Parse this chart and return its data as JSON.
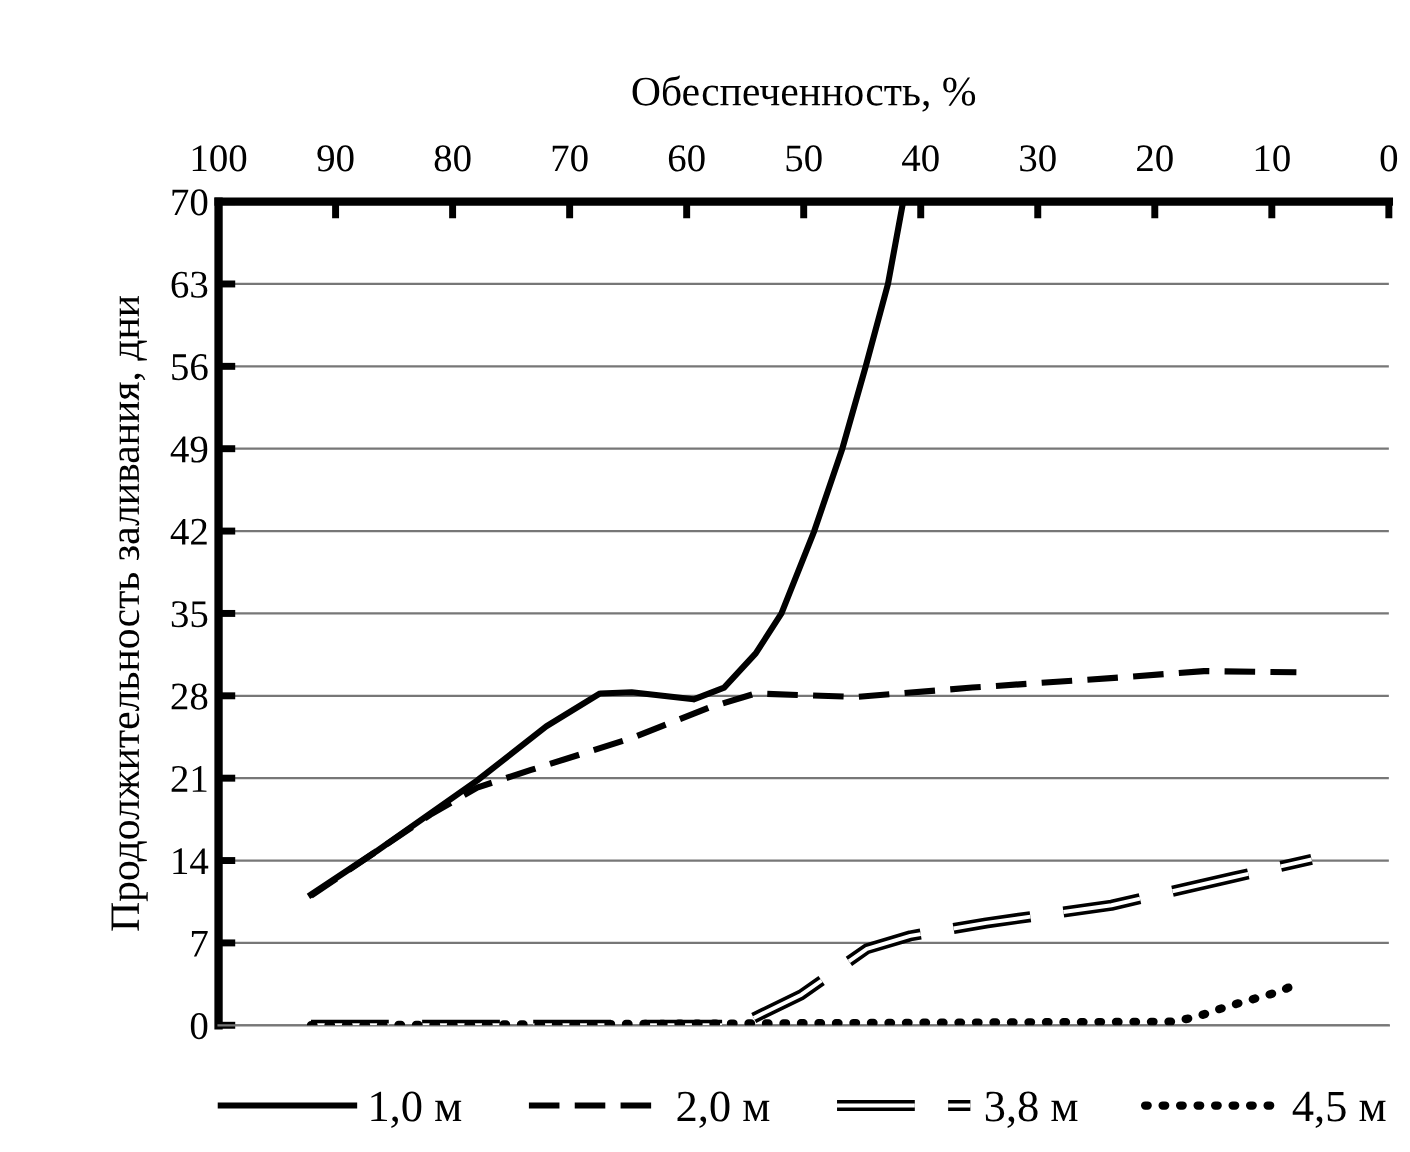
{
  "chart_data": {
    "type": "line",
    "xlabel": "Обеспеченность, %",
    "ylabel": "Продолжительность заливания, дни",
    "xlim": [
      100,
      0
    ],
    "xticks": [
      100,
      90,
      80,
      70,
      60,
      50,
      40,
      30,
      20,
      10,
      0
    ],
    "ylim": [
      0,
      70
    ],
    "yticks": [
      0,
      7,
      14,
      21,
      28,
      35,
      42,
      49,
      56,
      63,
      70
    ],
    "grid": "y",
    "legend": "bottom",
    "marker": "none",
    "series": [
      {
        "name": "1,0 м",
        "color": "#000000",
        "line_style": "solid",
        "x": [
          92.1,
          86.5,
          77.9,
          72,
          67.4,
          64.7,
          59.4,
          56.8,
          54.1,
          51.9,
          49.1,
          46.7,
          44.7,
          42.8,
          41.5
        ],
        "values": [
          11.1,
          14.8,
          20.8,
          25.4,
          28.2,
          28.3,
          27.7,
          28.7,
          31.6,
          35,
          42,
          49,
          56,
          63,
          70
        ]
      },
      {
        "name": "2,0 м",
        "color": "#000000",
        "line_style": "dashed",
        "x": [
          92.1,
          81.9,
          77.9,
          73.3,
          64.7,
          58.1,
          54.1,
          45.5,
          35.6,
          22.4,
          15.8,
          7.9
        ],
        "values": [
          11,
          17.9,
          20.2,
          21.7,
          24.4,
          27,
          28.2,
          27.9,
          28.7,
          29.6,
          30.1,
          30
        ]
      },
      {
        "name": "3,8 м",
        "color": "#000000",
        "line_style": "double",
        "x": [
          92.1,
          55.5,
          53.5,
          50.2,
          44.6,
          40.9,
          34.4,
          23.7,
          13.2,
          6.6
        ],
        "values": [
          0,
          0,
          1,
          2.6,
          6.5,
          7.6,
          8.7,
          10.2,
          12.6,
          14.1
        ]
      },
      {
        "name": "4,5 м",
        "color": "#000000",
        "line_style": "dotted",
        "x": [
          92.1,
          18.5,
          16.5,
          13.8,
          9.2,
          7.6
        ],
        "values": [
          0,
          0.3,
          0.7,
          1.6,
          2.9,
          3.7
        ]
      }
    ]
  }
}
